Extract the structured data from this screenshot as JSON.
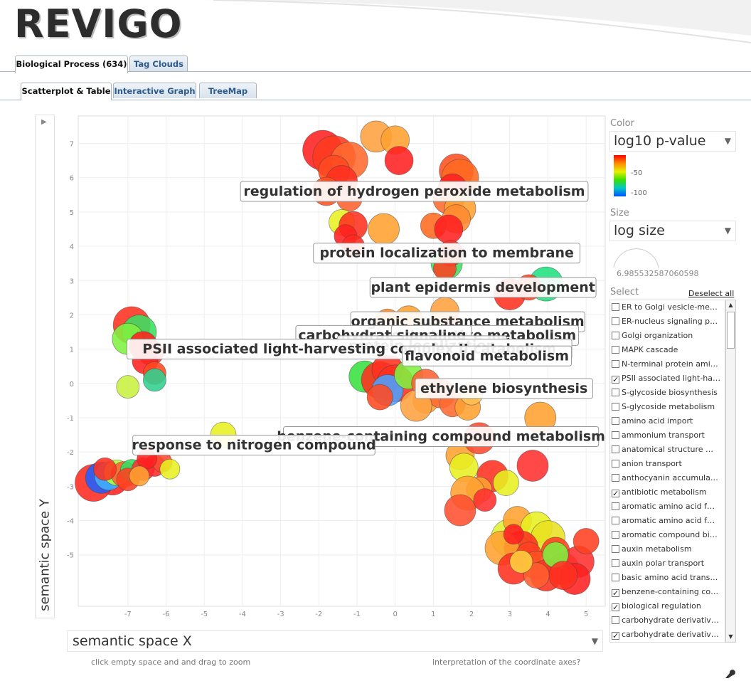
{
  "app": {
    "logo": "REVIGO"
  },
  "tabs_top": [
    {
      "label": "Biological Process (634)",
      "active": true
    },
    {
      "label": "Tag Clouds",
      "active": false
    }
  ],
  "tabs_sub": [
    {
      "label": "Scatterplot & Table",
      "active": true
    },
    {
      "label": "Interactive Graph",
      "active": false
    },
    {
      "label": "TreeMap",
      "active": false
    }
  ],
  "plot": {
    "ylabel": "semantic space Y",
    "xselect": "semantic space X",
    "hint_left": "click empty space and and drag to zoom",
    "hint_right": "interpretation of the coordinate axes?"
  },
  "chart_data": {
    "type": "scatter",
    "xlabel": "semantic space X",
    "ylabel": "semantic space Y",
    "xlim": [
      -8.3,
      5.5
    ],
    "ylim": [
      -6.5,
      7.8
    ],
    "xticks": [
      -7,
      -6,
      -5,
      -4,
      -3,
      -2,
      -1,
      0,
      1,
      2,
      3,
      4,
      5
    ],
    "yticks": [
      -5,
      -4,
      -3,
      -2,
      -1,
      0,
      1,
      2,
      3,
      4,
      5,
      6,
      7
    ],
    "grid": true,
    "color_encoding": "log10 p-value",
    "size_encoding": "log size",
    "points": [
      [
        -7.4,
        -2.8,
        22,
        "#ff2020"
      ],
      [
        -7.9,
        -2.9,
        26,
        "#ff2a20"
      ],
      [
        -7.7,
        -2.75,
        22,
        "#2060ff"
      ],
      [
        -7.5,
        -2.7,
        20,
        "#40b0ff"
      ],
      [
        -7.3,
        -2.6,
        18,
        "#b0ff40"
      ],
      [
        -7.1,
        -2.65,
        18,
        "#ff6030"
      ],
      [
        -6.9,
        -2.55,
        16,
        "#30e060"
      ],
      [
        -6.6,
        -2.5,
        16,
        "#ff3030"
      ],
      [
        -6.3,
        -2.4,
        15,
        "#ff2a2a"
      ],
      [
        -6.1,
        -2.3,
        14,
        "#ff4a30"
      ],
      [
        -5.9,
        -2.5,
        14,
        "#e8f020"
      ],
      [
        -6.5,
        -2.2,
        14,
        "#ff2020"
      ],
      [
        -7.0,
        -2.8,
        16,
        "#ff4020"
      ],
      [
        -6.7,
        -2.7,
        14,
        "#ffa030"
      ],
      [
        -7.6,
        -2.5,
        16,
        "#ff3020"
      ],
      [
        -6.9,
        1.7,
        26,
        "#ff3020"
      ],
      [
        -6.7,
        1.5,
        24,
        "#39e060"
      ],
      [
        -7.0,
        1.3,
        22,
        "#80f040"
      ],
      [
        -6.6,
        1.1,
        20,
        "#ff2020"
      ],
      [
        -6.4,
        0.9,
        18,
        "#ff3030"
      ],
      [
        -6.55,
        0.65,
        18,
        "#ff2020"
      ],
      [
        -6.3,
        0.3,
        16,
        "#ff4a20"
      ],
      [
        -6.3,
        0.1,
        16,
        "#30d090"
      ],
      [
        -7.0,
        -0.1,
        16,
        "#c8f040"
      ],
      [
        -1.9,
        6.8,
        28,
        "#ff2020"
      ],
      [
        -1.6,
        6.6,
        30,
        "#ff3a20"
      ],
      [
        -1.2,
        6.5,
        26,
        "#ff6a30"
      ],
      [
        -1.6,
        6.2,
        22,
        "#ff4a20"
      ],
      [
        -1.4,
        5.9,
        22,
        "#ff3020"
      ],
      [
        -1.8,
        5.6,
        20,
        "#ff5020"
      ],
      [
        -1.2,
        5.4,
        18,
        "#ff6030"
      ],
      [
        -0.5,
        7.2,
        22,
        "#ffa040"
      ],
      [
        0.0,
        7.1,
        20,
        "#ffa030"
      ],
      [
        0.1,
        6.5,
        20,
        "#ff2020"
      ],
      [
        1.6,
        6.2,
        24,
        "#ff5020"
      ],
      [
        1.7,
        6.0,
        26,
        "#ff6a20"
      ],
      [
        1.5,
        5.7,
        20,
        "#ff2020"
      ],
      [
        1.4,
        5.4,
        22,
        "#ff6a30"
      ],
      [
        1.7,
        5.1,
        22,
        "#ffa030"
      ],
      [
        1.6,
        4.8,
        20,
        "#ff8a30"
      ],
      [
        1.0,
        4.6,
        18,
        "#ff6a20"
      ],
      [
        1.4,
        4.5,
        20,
        "#ff2020"
      ],
      [
        -1.4,
        4.7,
        18,
        "#e8f020"
      ],
      [
        -1.1,
        4.6,
        20,
        "#ff3020"
      ],
      [
        -0.3,
        4.5,
        22,
        "#ffa030"
      ],
      [
        -1.3,
        4.3,
        16,
        "#ff2020"
      ],
      [
        -1.1,
        4.0,
        16,
        "#ff2a20"
      ],
      [
        1.35,
        3.5,
        22,
        "#40e060"
      ],
      [
        1.45,
        3.8,
        18,
        "#ff3020"
      ],
      [
        1.3,
        3.35,
        16,
        "#ff4020"
      ],
      [
        3.0,
        2.6,
        22,
        "#ff3020"
      ],
      [
        3.95,
        2.9,
        24,
        "#20e080"
      ],
      [
        3.5,
        2.8,
        18,
        "#ff4020"
      ],
      [
        -0.2,
        1.8,
        18,
        "#ff8a20"
      ],
      [
        0.35,
        1.85,
        20,
        "#ffa030"
      ],
      [
        1.3,
        2.1,
        20,
        "#ffa040"
      ],
      [
        1.5,
        1.6,
        18,
        "#ff6020"
      ],
      [
        1.1,
        1.5,
        16,
        "#ffc040"
      ],
      [
        -0.8,
        0.2,
        22,
        "#39e040"
      ],
      [
        -0.4,
        0.1,
        26,
        "#ff3020"
      ],
      [
        -0.2,
        0.4,
        22,
        "#ff3020"
      ],
      [
        0.0,
        0.0,
        26,
        "#ff3020"
      ],
      [
        -0.2,
        -0.2,
        22,
        "#4aa0ff"
      ],
      [
        0.35,
        0.25,
        20,
        "#80f040"
      ],
      [
        0.8,
        0.0,
        20,
        "#ff6030"
      ],
      [
        -0.4,
        -0.4,
        18,
        "#ff4a20"
      ],
      [
        0.8,
        -0.5,
        18,
        "#ffa030"
      ],
      [
        1.2,
        -0.3,
        20,
        "#ff6a30"
      ],
      [
        1.5,
        -0.6,
        18,
        "#ff6a30"
      ],
      [
        1.9,
        -0.7,
        18,
        "#ffa030"
      ],
      [
        2.0,
        -0.3,
        16,
        "#ffc050"
      ],
      [
        0.55,
        -0.65,
        22,
        "#ffa040"
      ],
      [
        3.8,
        -1.0,
        22,
        "#ffa030"
      ],
      [
        3.6,
        -2.4,
        22,
        "#ff3030"
      ],
      [
        1.7,
        -2.1,
        20,
        "#ffa030"
      ],
      [
        2.2,
        -1.6,
        22,
        "#ff4a30"
      ],
      [
        1.8,
        -2.45,
        20,
        "#e8f020"
      ],
      [
        2.55,
        -2.7,
        22,
        "#ff3020"
      ],
      [
        2.2,
        -3.1,
        18,
        "#ffa030"
      ],
      [
        2.9,
        -2.9,
        18,
        "#e8f020"
      ],
      [
        1.9,
        -3.2,
        24,
        "#ffa030"
      ],
      [
        1.7,
        -3.7,
        22,
        "#ff5030"
      ],
      [
        2.35,
        -3.4,
        16,
        "#ff3030"
      ],
      [
        3.0,
        -4.5,
        26,
        "#e0f030"
      ],
      [
        3.2,
        -4.0,
        20,
        "#ffa030"
      ],
      [
        3.7,
        -4.2,
        22,
        "#e8f020"
      ],
      [
        4.0,
        -4.5,
        24,
        "#e8e020"
      ],
      [
        4.2,
        -4.9,
        20,
        "#ff4020"
      ],
      [
        3.3,
        -4.8,
        24,
        "#ff3020"
      ],
      [
        2.8,
        -4.8,
        24,
        "#ffa030"
      ],
      [
        3.5,
        -5.0,
        18,
        "#ff4020"
      ],
      [
        3.1,
        -5.4,
        22,
        "#ff3020"
      ],
      [
        3.7,
        -5.3,
        20,
        "#ff5020"
      ],
      [
        4.4,
        -5.4,
        22,
        "#ff4020"
      ],
      [
        4.8,
        -5.2,
        22,
        "#ff3030"
      ],
      [
        4.7,
        -5.7,
        22,
        "#ff2020"
      ],
      [
        3.95,
        -5.6,
        22,
        "#ff3020"
      ],
      [
        4.2,
        -5.0,
        18,
        "#80f040"
      ],
      [
        3.7,
        -5.6,
        18,
        "#ff6030"
      ],
      [
        3.3,
        -5.2,
        16,
        "#ffd040"
      ],
      [
        4.4,
        -5.6,
        20,
        "#ff3020"
      ],
      [
        3.1,
        -4.4,
        14,
        "#ff2020"
      ],
      [
        5.0,
        -4.6,
        18,
        "#ff4020"
      ],
      [
        -4.5,
        -1.5,
        18,
        "#e8f020"
      ]
    ],
    "labels": [
      {
        "text": "regulation of hydrogen peroxide metabolism",
        "x": 0.5,
        "y": 5.6
      },
      {
        "text": "protein localization to membrane",
        "x": 1.35,
        "y": 3.8
      },
      {
        "text": "plant epidermis development",
        "x": 2.3,
        "y": 2.8
      },
      {
        "text": "organic substance metabolism",
        "x": 1.9,
        "y": 1.8
      },
      {
        "text": "carbohydrate derivative metabolism",
        "x": 1.1,
        "y": 1.4
      },
      {
        "text": "signaling",
        "x": 0.95,
        "y": 1.4
      },
      {
        "text": "protein localization",
        "x": 0.7,
        "y": 1.1
      },
      {
        "text": "PSII associated light-harvesting complex II catabolism",
        "x": -1.2,
        "y": 1.0
      },
      {
        "text": "flavonoid metabolism",
        "x": 2.4,
        "y": 0.8
      },
      {
        "text": "ethylene biosynthesis",
        "x": 2.85,
        "y": -0.15
      },
      {
        "text": "benzene-containing compound metabolism",
        "x": 1.2,
        "y": -1.55
      },
      {
        "text": "response to nitrogen compound",
        "x": -3.7,
        "y": -1.8
      }
    ]
  },
  "controls": {
    "color_label": "Color",
    "color_value": "log10 p-value",
    "colorbar_ticks": [
      "-50",
      "-100"
    ],
    "size_label": "Size",
    "size_value": "log size",
    "size_number": "6.985532587060598",
    "select_label": "Select",
    "deselect_label": "Deselect all"
  },
  "select_list": [
    {
      "label": "ER to Golgi vesicle-me…",
      "checked": false
    },
    {
      "label": "ER-nucleus signaling p…",
      "checked": false
    },
    {
      "label": "Golgi organization",
      "checked": false
    },
    {
      "label": "MAPK cascade",
      "checked": false
    },
    {
      "label": "N-terminal protein ami…",
      "checked": false
    },
    {
      "label": "PSII associated light-ha…",
      "checked": true
    },
    {
      "label": "S-glycoside biosynthesis",
      "checked": false
    },
    {
      "label": "S-glycoside metabolism",
      "checked": false
    },
    {
      "label": "amino acid import",
      "checked": false
    },
    {
      "label": "ammonium transport",
      "checked": false
    },
    {
      "label": "anatomical structure …",
      "checked": false
    },
    {
      "label": "anion transport",
      "checked": false
    },
    {
      "label": "anthocyanin accumula…",
      "checked": false
    },
    {
      "label": "antibiotic metabolism",
      "checked": true
    },
    {
      "label": "aromatic amino acid f…",
      "checked": false
    },
    {
      "label": "aromatic amino acid f…",
      "checked": false
    },
    {
      "label": "aromatic compound bi…",
      "checked": false
    },
    {
      "label": "auxin metabolism",
      "checked": false
    },
    {
      "label": "auxin polar transport",
      "checked": false
    },
    {
      "label": "basic amino acid trans…",
      "checked": false
    },
    {
      "label": "benzene-containing co…",
      "checked": true
    },
    {
      "label": "biological regulation",
      "checked": true
    },
    {
      "label": "carbohydrate derivativ…",
      "checked": false
    },
    {
      "label": "carbohydrate derivativ…",
      "checked": true
    }
  ]
}
